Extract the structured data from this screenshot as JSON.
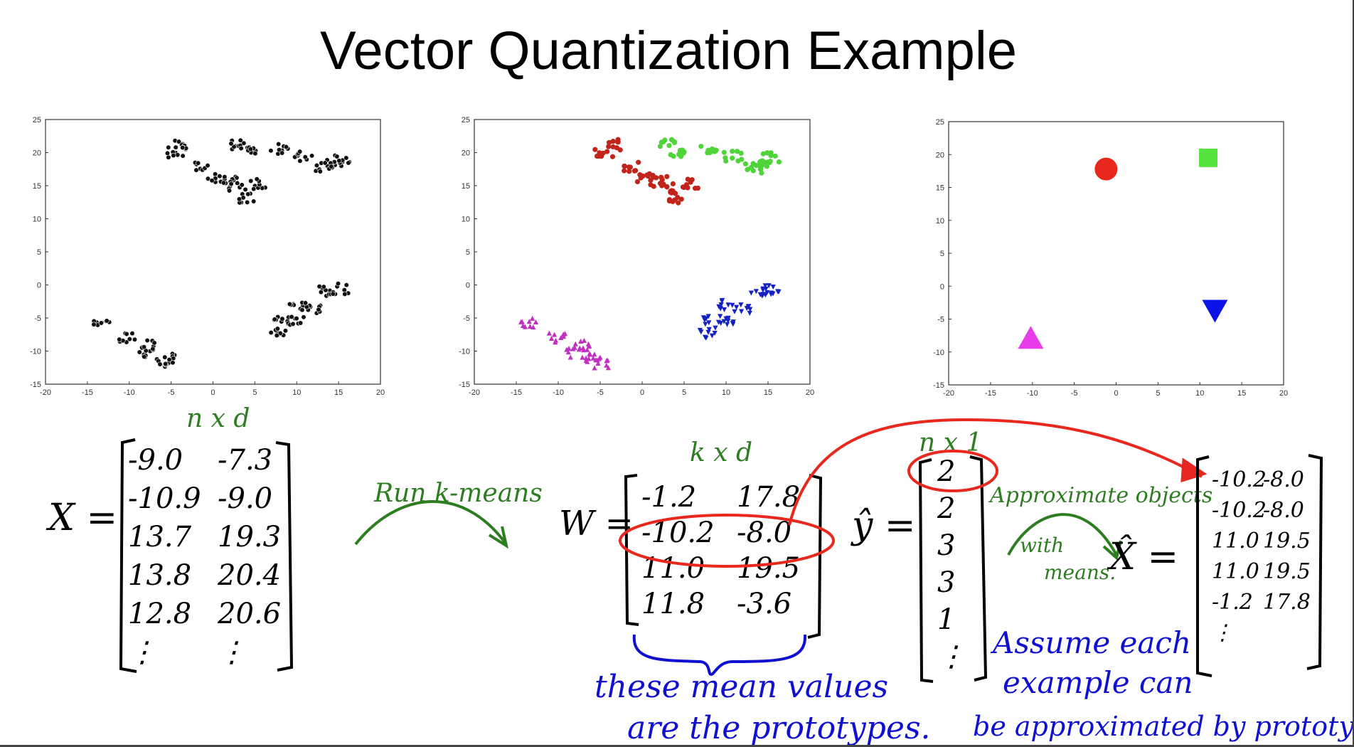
{
  "slide": {
    "title": "Vector Quantization Example"
  },
  "chart_data": [
    {
      "type": "scatter",
      "title": "",
      "xlim": [
        -20,
        20
      ],
      "ylim": [
        -15,
        25
      ],
      "x_ticks": [
        "-20",
        "-15",
        "-10",
        "-5",
        "0",
        "5",
        "10",
        "15",
        "20"
      ],
      "y_ticks": [
        "-15",
        "-10",
        "-5",
        "0",
        "5",
        "10",
        "15",
        "20",
        "25"
      ],
      "series": [
        {
          "color": "#111111",
          "marker": "circle",
          "points": [
            [
              -3.6,
              21.2
            ],
            [
              -4.6,
              20.0
            ],
            [
              -1.2,
              17.8
            ],
            [
              0.4,
              16.2
            ],
            [
              1.9,
              15.6
            ],
            [
              3.0,
              14.8
            ],
            [
              4.1,
              13.2
            ],
            [
              5.6,
              15.3
            ],
            [
              3.2,
              21.2
            ],
            [
              4.2,
              20.0
            ],
            [
              7.9,
              20.5
            ],
            [
              10.8,
              19.5
            ],
            [
              14.6,
              18.5
            ],
            [
              15.4,
              19.2
            ],
            [
              13.2,
              17.7
            ],
            [
              -13.4,
              -5.8
            ],
            [
              -10.2,
              -8.0
            ],
            [
              -8.2,
              -10.2
            ],
            [
              -5.6,
              -11.2
            ],
            [
              -7.4,
              -9.1
            ],
            [
              -4.8,
              -11.8
            ],
            [
              7.8,
              -7.2
            ],
            [
              8.4,
              -5.2
            ],
            [
              11.8,
              -3.6
            ],
            [
              13.8,
              -1.0
            ],
            [
              15.4,
              -0.6
            ],
            [
              10.2,
              -3.0
            ],
            [
              9.8,
              -5.5
            ]
          ]
        }
      ]
    },
    {
      "type": "scatter",
      "title": "",
      "xlim": [
        -20,
        20
      ],
      "ylim": [
        -15,
        25
      ],
      "x_ticks": [
        "-20",
        "-15",
        "-10",
        "-5",
        "0",
        "5",
        "10",
        "15",
        "20"
      ],
      "y_ticks": [
        "-15",
        "-10",
        "-5",
        "0",
        "5",
        "10",
        "15",
        "20",
        "25"
      ],
      "series": [
        {
          "color": "#c0241b",
          "marker": "circle",
          "points": [
            [
              -3.6,
              21.2
            ],
            [
              -4.6,
              20.0
            ],
            [
              -1.2,
              17.8
            ],
            [
              0.4,
              16.2
            ],
            [
              1.9,
              15.6
            ],
            [
              3.0,
              14.8
            ],
            [
              4.1,
              13.2
            ],
            [
              5.6,
              15.3
            ]
          ]
        },
        {
          "color": "#4fd43a",
          "marker": "circle",
          "points": [
            [
              3.2,
              21.2
            ],
            [
              4.2,
              20.0
            ],
            [
              7.9,
              20.5
            ],
            [
              10.8,
              19.5
            ],
            [
              14.6,
              18.5
            ],
            [
              15.4,
              19.2
            ],
            [
              13.2,
              17.7
            ]
          ]
        },
        {
          "color": "#c12fc1",
          "marker": "triangle-up",
          "points": [
            [
              -13.4,
              -5.8
            ],
            [
              -10.2,
              -8.0
            ],
            [
              -8.2,
              -10.2
            ],
            [
              -5.6,
              -11.2
            ],
            [
              -7.4,
              -9.1
            ],
            [
              -4.8,
              -11.8
            ]
          ]
        },
        {
          "color": "#1422c4",
          "marker": "triangle-down",
          "points": [
            [
              7.8,
              -7.2
            ],
            [
              8.4,
              -5.2
            ],
            [
              11.8,
              -3.6
            ],
            [
              13.8,
              -1.0
            ],
            [
              15.4,
              -0.6
            ],
            [
              10.2,
              -3.0
            ],
            [
              9.8,
              -5.5
            ]
          ]
        }
      ]
    },
    {
      "type": "scatter",
      "title": "",
      "xlim": [
        -20,
        20
      ],
      "ylim": [
        -15,
        25
      ],
      "x_ticks": [
        "-20",
        "-15",
        "-10",
        "-5",
        "0",
        "5",
        "10",
        "15",
        "20"
      ],
      "y_ticks": [
        "-15",
        "-10",
        "-5",
        "0",
        "5",
        "10",
        "15",
        "20",
        "25"
      ],
      "series": [
        {
          "color": "#e8281e",
          "marker": "big-circle",
          "points": [
            [
              -1.2,
              17.8
            ]
          ]
        },
        {
          "color": "#57e33d",
          "marker": "big-square",
          "points": [
            [
              11.0,
              19.5
            ]
          ]
        },
        {
          "color": "#ea3bea",
          "marker": "big-triangle-up",
          "points": [
            [
              -10.2,
              -8.0
            ]
          ]
        },
        {
          "color": "#0a14e8",
          "marker": "big-triangle-down",
          "points": [
            [
              11.8,
              -3.6
            ]
          ]
        }
      ]
    }
  ],
  "annotations": {
    "x_label": "X =",
    "x_dims": "n x d",
    "x_rows": [
      [
        "-9.0",
        "-7.3"
      ],
      [
        "-10.9",
        "-9.0"
      ],
      [
        "13.7",
        "19.3"
      ],
      [
        "13.8",
        "20.4"
      ],
      [
        "12.8",
        "20.6"
      ],
      [
        "⋮",
        "⋮"
      ]
    ],
    "run_label": "Run k-means",
    "w_label": "W =",
    "w_dims": "k x d",
    "w_rows": [
      [
        "-1.2",
        "17.8"
      ],
      [
        "-10.2",
        "-8.0"
      ],
      [
        "11.0",
        "19.5"
      ],
      [
        "11.8",
        "-3.6"
      ]
    ],
    "yhat_label": "ŷ =",
    "yhat_dims": "n x 1",
    "yhat_rows": [
      "2",
      "2",
      "3",
      "3",
      "1",
      "⋮"
    ],
    "approx_label": "Approximate objects",
    "with_label": "with",
    "means_label": "means.",
    "xhat_label": "X̂ =",
    "xhat_rows": [
      [
        "-10.2",
        "-8.0"
      ],
      [
        "-10.2",
        "-8.0"
      ],
      [
        "11.0",
        "19.5"
      ],
      [
        "11.0",
        "19.5"
      ],
      [
        "-1.2",
        "17.8"
      ],
      [
        "⋮",
        ""
      ]
    ],
    "prototypes_line1": "these mean values",
    "prototypes_line2": "are the prototypes.",
    "assume_line1": "Assume each",
    "assume_line2": "example can",
    "assume_line3": "be approximated by prototype"
  },
  "colors": {
    "ink_black": "#000000",
    "ink_green": "#2e7d22",
    "ink_red": "#e8281e",
    "ink_blue": "#1010d0"
  }
}
